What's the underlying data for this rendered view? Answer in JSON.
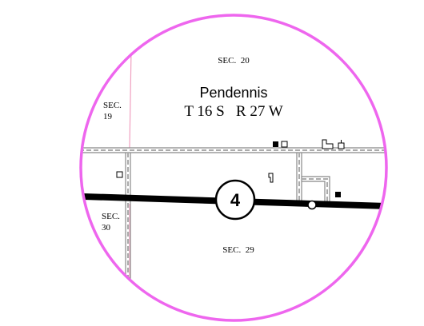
{
  "map": {
    "section_20": "SEC.  20",
    "town_name": "Pendennis",
    "township_range": "T 16 S   R 27 W",
    "section_19": [
      "SEC.",
      "19"
    ],
    "section_30": [
      "SEC.",
      "30"
    ],
    "section_29": "SEC.  29",
    "route_shield": "4"
  }
}
